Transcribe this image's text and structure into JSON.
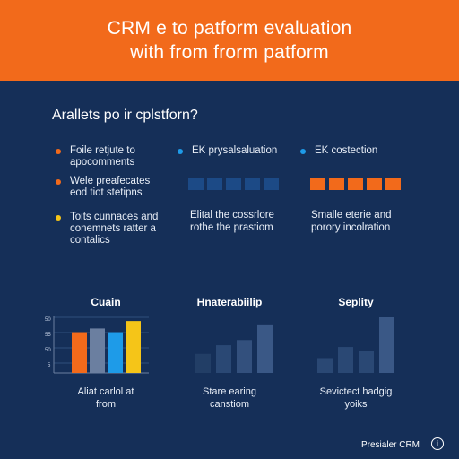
{
  "header": {
    "title_lines": [
      "CRM e to patform evaluation",
      "with from frorm patform"
    ],
    "background": "#f26a1b"
  },
  "subtitle": "Arallets po ir cplstforn?",
  "columns": [
    {
      "items": [
        {
          "lines": [
            "Foile retjute to",
            "apocomments"
          ],
          "color": "#f26a1b"
        },
        {
          "lines": [
            "Wele preafecates",
            "eod tiot stetipns"
          ],
          "color": "#f26a1b"
        },
        {
          "lines": [
            "Toits cunnaces and",
            "conemnets ratter a",
            "contalics"
          ],
          "color": "#f5c518"
        }
      ]
    },
    {
      "heading": "EK prysalsaluation",
      "color": "#1e9be8",
      "square_color": "#1c4a86",
      "square_count": 5,
      "note_lines": [
        "Elital the cossrlore",
        "rothe the prastiom"
      ]
    },
    {
      "heading": "EK costection",
      "color": "#1e9be8",
      "square_color": "#f26a1b",
      "square_count": 5,
      "note_lines": [
        "Smalle eterie and",
        "porory incolration"
      ]
    }
  ],
  "charts": [
    {
      "title": "Cuain",
      "caption_lines": [
        "Aliat carlol at",
        "from"
      ],
      "ticks": [
        "50",
        "55",
        "50",
        "5"
      ],
      "chart_data": {
        "type": "bar",
        "values": [
          44,
          48,
          44,
          56
        ],
        "colors": [
          "#f26a1b",
          "#6b7fa0",
          "#1e9be8",
          "#f5c518"
        ],
        "ylim": [
          0,
          60
        ],
        "grid": true
      }
    },
    {
      "title": "Hnaterabiilip",
      "caption_lines": [
        "Stare earing",
        "canstiom"
      ],
      "chart_data": {
        "type": "bar",
        "values": [
          22,
          32,
          38,
          56
        ],
        "colors": [
          "#223e66",
          "#2a4874",
          "#33507d",
          "#3a5886"
        ],
        "ylim": [
          0,
          60
        ],
        "grid": false
      }
    },
    {
      "title": "Seplity",
      "caption_lines": [
        "Sevictect hadgig",
        "yoiks"
      ],
      "chart_data": {
        "type": "bar",
        "values": [
          16,
          28,
          24,
          60
        ],
        "colors": [
          "#2a4874",
          "#2a4874",
          "#2a4874",
          "#3a5886"
        ],
        "ylim": [
          0,
          60
        ],
        "grid": false
      }
    }
  ],
  "footer": {
    "text": "Presialer CRM",
    "icon": "info-circle-icon"
  }
}
